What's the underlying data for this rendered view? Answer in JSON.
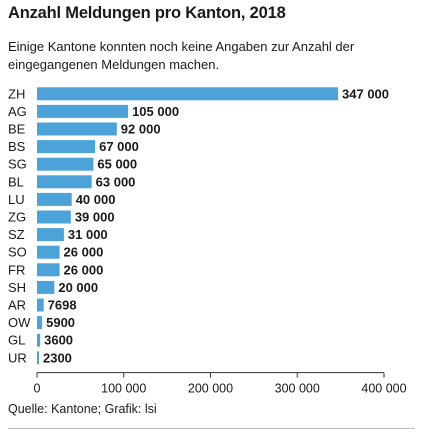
{
  "chart_data": {
    "type": "bar",
    "orientation": "horizontal",
    "title": "Anzahl Meldungen pro Kanton, 2018",
    "subtitle": "Einige Kantone konnten noch keine Angaben zur Anzahl der eingegangenen Meldungen machen.",
    "categories": [
      "ZH",
      "AG",
      "BE",
      "BS",
      "SG",
      "BL",
      "LU",
      "ZG",
      "SZ",
      "SO",
      "FR",
      "SH",
      "AR",
      "OW",
      "GL",
      "UR"
    ],
    "values": [
      347000,
      105000,
      92000,
      67000,
      65000,
      63000,
      40000,
      39000,
      31000,
      26000,
      26000,
      20000,
      7698,
      5900,
      3600,
      2300
    ],
    "value_labels": [
      "347 000",
      "105 000",
      "92 000",
      "67 000",
      "65 000",
      "63 000",
      "40 000",
      "39 000",
      "31 000",
      "26 000",
      "26 000",
      "20 000",
      "7698",
      "5900",
      "3600",
      "2300"
    ],
    "xlim": [
      0,
      400000
    ],
    "xticks": [
      0,
      100000,
      200000,
      300000,
      400000
    ],
    "xtick_labels": [
      "0",
      "100 000",
      "200 000",
      "300 000",
      "400 000"
    ],
    "bar_color": "#4ba3d9",
    "grid": false,
    "source": "Quelle: Kantone; Grafik: lsi"
  }
}
